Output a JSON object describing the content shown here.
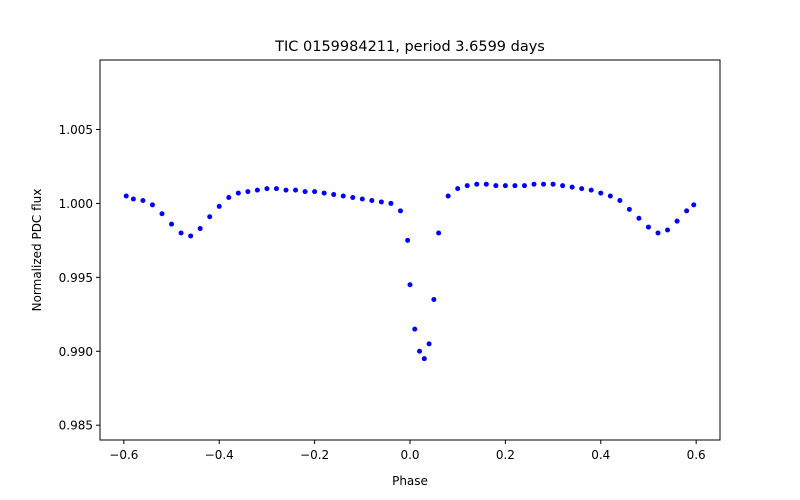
{
  "chart_data": {
    "type": "scatter",
    "title": "TIC 0159984211, period 3.6599 days",
    "xlabel": "Phase",
    "ylabel": "Normalized PDC flux",
    "xlim": [
      -0.65,
      0.65
    ],
    "ylim": [
      0.984,
      1.0097
    ],
    "xticks": [
      -0.6,
      -0.4,
      -0.2,
      0.0,
      0.2,
      0.4,
      0.6
    ],
    "xtick_labels": [
      "−0.6",
      "−0.4",
      "−0.2",
      "0.0",
      "0.2",
      "0.4",
      "0.6"
    ],
    "yticks": [
      0.985,
      0.99,
      0.995,
      1.0,
      1.005
    ],
    "ytick_labels": [
      "0.985",
      "0.990",
      "0.995",
      "1.000",
      "1.005"
    ],
    "grid": false,
    "legend": "none",
    "marker_color": "#0000ff",
    "series": [
      {
        "x": [
          -0.595,
          -0.58,
          -0.56,
          -0.54,
          -0.52,
          -0.5,
          -0.48,
          -0.46,
          -0.44,
          -0.42,
          -0.4,
          -0.38,
          -0.36,
          -0.34,
          -0.32,
          -0.3,
          -0.28,
          -0.26,
          -0.24,
          -0.22,
          -0.2,
          -0.18,
          -0.16,
          -0.14,
          -0.12,
          -0.1,
          -0.08,
          -0.06,
          -0.04,
          -0.02,
          -0.005,
          0.0,
          0.01,
          0.02,
          0.03,
          0.04,
          0.05,
          0.06,
          0.08,
          0.1,
          0.12,
          0.14,
          0.16,
          0.18,
          0.2,
          0.22,
          0.24,
          0.26,
          0.28,
          0.3,
          0.32,
          0.34,
          0.36,
          0.38,
          0.4,
          0.42,
          0.44,
          0.46,
          0.48,
          0.5,
          0.52,
          0.54,
          0.56,
          0.58,
          0.595
        ],
        "y": [
          1.0005,
          1.0003,
          1.0002,
          0.9999,
          0.9993,
          0.9986,
          0.998,
          0.9978,
          0.9983,
          0.9991,
          0.9998,
          1.0004,
          1.0007,
          1.0008,
          1.0009,
          1.001,
          1.001,
          1.0009,
          1.0009,
          1.0008,
          1.0008,
          1.0007,
          1.0006,
          1.0005,
          1.0004,
          1.0003,
          1.0002,
          1.0001,
          1.0,
          0.9995,
          0.9975,
          0.9945,
          0.9915,
          0.99,
          0.9895,
          0.9905,
          0.9935,
          0.998,
          1.0005,
          1.001,
          1.0012,
          1.0013,
          1.0013,
          1.0012,
          1.0012,
          1.0012,
          1.0012,
          1.0013,
          1.0013,
          1.0013,
          1.0012,
          1.0011,
          1.001,
          1.0009,
          1.0007,
          1.0005,
          1.0002,
          0.9996,
          0.999,
          0.9984,
          0.998,
          0.9982,
          0.9988,
          0.9995,
          0.9999
        ]
      }
    ]
  }
}
